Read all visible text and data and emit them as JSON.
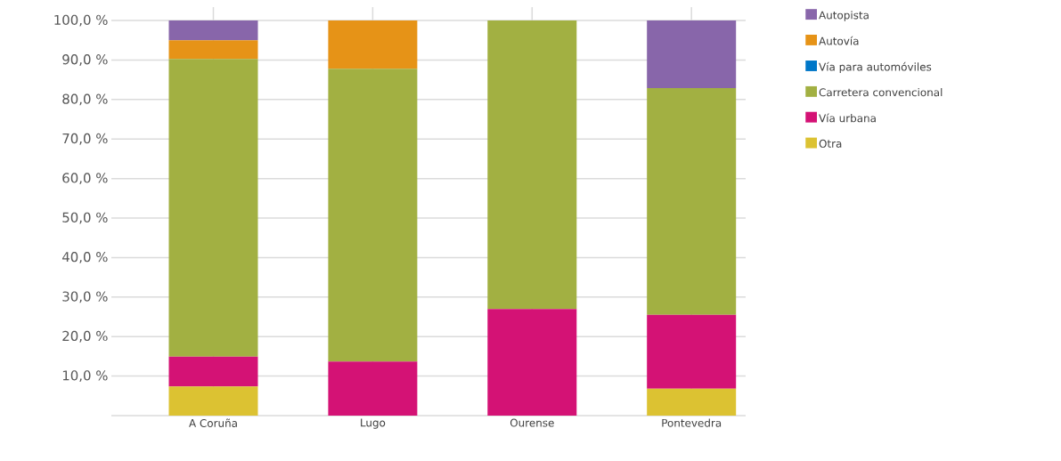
{
  "chart_data": {
    "type": "bar",
    "stacked": true,
    "categories": [
      "A Coruña",
      "Lugo",
      "Ourense",
      "Pontevedra"
    ],
    "series": [
      {
        "name": "Otra",
        "color": "#dcc232",
        "values": [
          7.4,
          0,
          0,
          6.8
        ]
      },
      {
        "name": "Vía urbana",
        "color": "#d41275",
        "values": [
          7.5,
          13.7,
          27.0,
          18.7
        ]
      },
      {
        "name": "Carretera convencional",
        "color": "#a2b042",
        "values": [
          75.4,
          74.1,
          73.0,
          57.4
        ]
      },
      {
        "name": "Vía para automóviles",
        "color": "#0077c8",
        "values": [
          0,
          0,
          0,
          0
        ]
      },
      {
        "name": "Autovía",
        "color": "#e69317",
        "values": [
          4.7,
          12.2,
          0,
          0
        ]
      },
      {
        "name": "Autopista",
        "color": "#8866aa",
        "values": [
          5.0,
          0,
          0,
          17.1
        ]
      }
    ],
    "ylim": [
      0,
      103.4
    ],
    "yticks": [
      {
        "value": 0,
        "label": null
      },
      {
        "value": 10,
        "label": "10,0 %"
      },
      {
        "value": 20,
        "label": "20,0 %"
      },
      {
        "value": 30,
        "label": "30,0 %"
      },
      {
        "value": 40,
        "label": "40,0 %"
      },
      {
        "value": 50,
        "label": "50,0 %"
      },
      {
        "value": 60,
        "label": "60,0 %"
      },
      {
        "value": 70,
        "label": "70,0 %"
      },
      {
        "value": 80,
        "label": "80,0 %"
      },
      {
        "value": 90,
        "label": "90,0 %"
      },
      {
        "value": 100,
        "label": "100,0 %"
      }
    ],
    "grid": true,
    "legend": "right"
  }
}
